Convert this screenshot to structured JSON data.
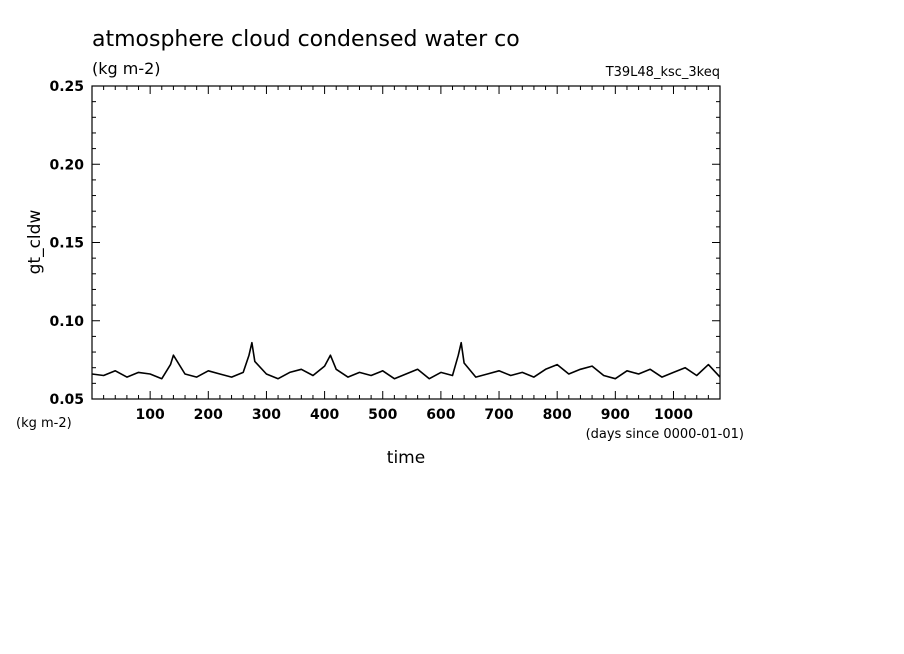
{
  "chart_data": {
    "type": "line",
    "title": "atmosphere cloud condensed water co",
    "subtitle": "(kg m-2)",
    "experiment": "T39L48_ksc_3keq",
    "xlabel": "time",
    "ylabel": "gt_cldw",
    "x_units": "(days since 0000-01-01)",
    "y_units": "(kg m-2)",
    "xlim": [
      0,
      1080
    ],
    "ylim": [
      0.05,
      0.25
    ],
    "x_ticks": [
      100,
      200,
      300,
      400,
      500,
      600,
      700,
      800,
      900,
      1000
    ],
    "x_tick_labels": [
      "100",
      "200",
      "300",
      "400",
      "500",
      "600",
      "700",
      "800",
      "900",
      "1000"
    ],
    "y_ticks": [
      0.05,
      0.1,
      0.15,
      0.2,
      0.25
    ],
    "y_tick_labels": [
      "0.05",
      "0.10",
      "0.15",
      "0.20",
      "0.25"
    ],
    "grid": false,
    "line_color": "#000000",
    "series": [
      {
        "x": [
          0,
          20,
          40,
          60,
          80,
          100,
          120,
          135,
          140,
          160,
          180,
          200,
          220,
          240,
          260,
          270,
          275,
          280,
          300,
          320,
          340,
          360,
          380,
          400,
          410,
          420,
          440,
          460,
          480,
          500,
          520,
          540,
          560,
          580,
          600,
          620,
          630,
          635,
          640,
          660,
          680,
          700,
          720,
          740,
          760,
          780,
          800,
          820,
          840,
          860,
          880,
          900,
          920,
          940,
          960,
          980,
          1000,
          1020,
          1040,
          1060,
          1080
        ],
        "values": [
          0.066,
          0.065,
          0.068,
          0.064,
          0.067,
          0.066,
          0.063,
          0.072,
          0.078,
          0.066,
          0.064,
          0.068,
          0.066,
          0.064,
          0.067,
          0.078,
          0.086,
          0.074,
          0.066,
          0.063,
          0.067,
          0.069,
          0.065,
          0.071,
          0.078,
          0.069,
          0.064,
          0.067,
          0.065,
          0.068,
          0.063,
          0.066,
          0.069,
          0.063,
          0.067,
          0.065,
          0.078,
          0.086,
          0.073,
          0.064,
          0.066,
          0.068,
          0.065,
          0.067,
          0.064,
          0.069,
          0.072,
          0.066,
          0.069,
          0.071,
          0.065,
          0.063,
          0.068,
          0.066,
          0.069,
          0.064,
          0.067,
          0.07,
          0.065,
          0.072,
          0.064
        ]
      }
    ]
  }
}
